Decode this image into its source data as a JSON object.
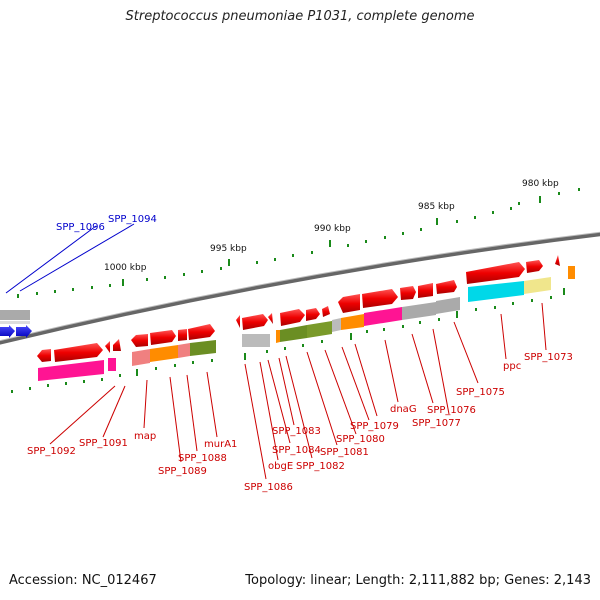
{
  "title": "Streptococcus pneumoniae P1031, complete genome",
  "accession_text": "Accession: NC_012467",
  "topology_text": "Topology: linear; Length: 2,111,882 bp; Genes: 2,143",
  "scale_labels": [
    "1000 kbp",
    "995 kbp",
    "990 kbp",
    "985 kbp",
    "980 kbp"
  ],
  "gene_labels": {
    "spp1096": "SPP_1096",
    "spp1094": "SPP_1094",
    "spp1092": "SPP_1092",
    "spp1091": "SPP_1091",
    "map": "map",
    "spp1089": "SPP_1089",
    "spp1088": "SPP_1088",
    "mura1": "murA1",
    "spp1086": "SPP_1086",
    "obge": "obgE",
    "spp1084": "SPP_1084",
    "spp1083": "SPP_1083",
    "spp1082": "SPP_1082",
    "spp1081": "SPP_1081",
    "spp1080": "SPP_1080",
    "spp1079": "SPP_1079",
    "dnag": "dnaG",
    "spp1077": "SPP_1077",
    "spp1076": "SPP_1076",
    "spp1075": "SPP_1075",
    "ppc": "ppc",
    "spp1073": "SPP_1073"
  },
  "colors": {
    "gene_forward": "#ee0000",
    "gene_reverse": "#0000ee",
    "backbone": "#777777",
    "tick": "#1a8a1a",
    "label": "#cc0000",
    "label_blue": "#0000cc"
  }
}
